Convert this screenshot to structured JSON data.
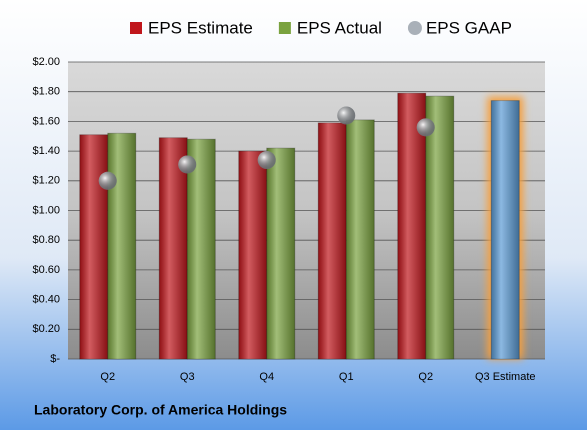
{
  "chart_data": {
    "type": "bar",
    "footer": "Laboratory Corp. of America Holdings",
    "categories": [
      "Q2",
      "Q3",
      "Q4",
      "Q1",
      "Q2",
      "Q3 Estimate"
    ],
    "series": [
      {
        "name": "EPS Estimate",
        "color": "#c0161c",
        "colors": [
          "#c0161c",
          "#c0161c",
          "#c0161c",
          "#c0161c",
          "#c0161c",
          "#5b9bd5"
        ],
        "values": [
          1.51,
          1.49,
          1.4,
          1.59,
          1.79,
          1.74
        ]
      },
      {
        "name": "EPS Actual",
        "color": "#7aa23f",
        "values": [
          1.52,
          1.48,
          1.42,
          1.61,
          1.77,
          null
        ]
      },
      {
        "name": "EPS GAAP",
        "type": "scatter",
        "color": "#a9b0b8",
        "values": [
          1.2,
          1.31,
          1.34,
          1.64,
          1.56,
          null
        ]
      }
    ],
    "ylim": [
      0,
      2
    ],
    "yticks": [
      {
        "value": 0,
        "label": "$-"
      },
      {
        "value": 0.2,
        "label": "$0.20"
      },
      {
        "value": 0.4,
        "label": "$0.40"
      },
      {
        "value": 0.6,
        "label": "$0.60"
      },
      {
        "value": 0.8,
        "label": "$0.80"
      },
      {
        "value": 1.0,
        "label": "$1.00"
      },
      {
        "value": 1.2,
        "label": "$1.20"
      },
      {
        "value": 1.4,
        "label": "$1.40"
      },
      {
        "value": 1.6,
        "label": "$1.60"
      },
      {
        "value": 1.8,
        "label": "$1.80"
      },
      {
        "value": 2.0,
        "label": "$2.00"
      }
    ],
    "grid": true
  }
}
